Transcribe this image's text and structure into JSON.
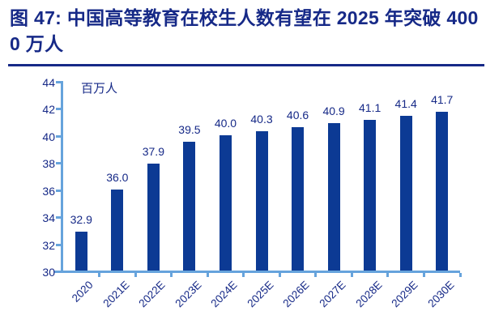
{
  "figure": {
    "title": "图 47: 中国高等教育在校生人数有望在 2025 年突破 4000 万人"
  },
  "chart_data": {
    "type": "bar",
    "title": "图 47: 中国高等教育在校生人数有望在 2025 年突破 4000 万人",
    "unit_label": "百万人",
    "categories": [
      "2020",
      "2021E",
      "2022E",
      "2023E",
      "2024E",
      "2025E",
      "2026E",
      "2027E",
      "2028E",
      "2029E",
      "2030E"
    ],
    "values": [
      32.9,
      36.0,
      37.9,
      39.5,
      40.0,
      40.3,
      40.6,
      40.9,
      41.1,
      41.4,
      41.7
    ],
    "value_labels": [
      "32.9",
      "36.0",
      "37.9",
      "39.5",
      "40.0",
      "40.3",
      "40.6",
      "40.9",
      "41.1",
      "41.4",
      "41.7"
    ],
    "xlabel": "",
    "ylabel": "",
    "ylim": [
      30,
      44
    ],
    "yticks": [
      30,
      32,
      34,
      36,
      38,
      40,
      42,
      44
    ],
    "grid": false,
    "legend_position": "none",
    "x_tick_rotation_deg": 45,
    "colors": {
      "bar": "#0C3A94",
      "axis": "#66A3DC",
      "text": "#162987"
    }
  }
}
